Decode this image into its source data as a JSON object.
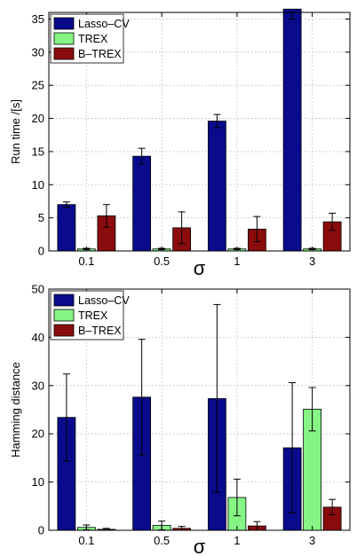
{
  "chart_data": [
    {
      "type": "bar",
      "categories": [
        "0.1",
        "0.5",
        "1",
        "3"
      ],
      "xlabel": "σ",
      "ylabel": "Run time  /[s]",
      "ylim": [
        0,
        36
      ],
      "yticks": [
        0,
        5,
        10,
        15,
        20,
        25,
        30,
        35
      ],
      "grid": true,
      "legend": "top-left",
      "series": [
        {
          "name": "Lasso–CV",
          "color": "#0a0a8c",
          "values": [
            7.0,
            14.3,
            19.6,
            36.5
          ],
          "errors": [
            0.4,
            1.2,
            1.0,
            1.5
          ]
        },
        {
          "name": "TREX",
          "color": "#86f586",
          "values": [
            0.3,
            0.3,
            0.3,
            0.3
          ],
          "errors": [
            0.1,
            0.1,
            0.1,
            0.1
          ]
        },
        {
          "name": "B–TREX",
          "color": "#8b0c0c",
          "values": [
            5.3,
            3.5,
            3.3,
            4.4
          ],
          "errors": [
            1.7,
            2.4,
            1.9,
            1.3
          ]
        }
      ]
    },
    {
      "type": "bar",
      "categories": [
        "0.1",
        "0.5",
        "1",
        "3"
      ],
      "xlabel": "σ",
      "ylabel": "Hamming distance",
      "ylim": [
        0,
        50
      ],
      "yticks": [
        0,
        10,
        20,
        30,
        40,
        50
      ],
      "grid": true,
      "legend": "top-left",
      "series": [
        {
          "name": "Lasso–CV",
          "color": "#0a0a8c",
          "values": [
            23.4,
            27.6,
            27.3,
            17.1
          ],
          "errors": [
            9.0,
            12.0,
            19.5,
            13.5
          ]
        },
        {
          "name": "TREX",
          "color": "#86f586",
          "values": [
            0.6,
            1.0,
            6.8,
            25.1
          ],
          "errors": [
            0.5,
            0.9,
            3.8,
            4.5
          ]
        },
        {
          "name": "B–TREX",
          "color": "#8b0c0c",
          "values": [
            0.2,
            0.4,
            0.9,
            4.8
          ],
          "errors": [
            0.2,
            0.4,
            0.9,
            1.6
          ]
        }
      ]
    }
  ]
}
